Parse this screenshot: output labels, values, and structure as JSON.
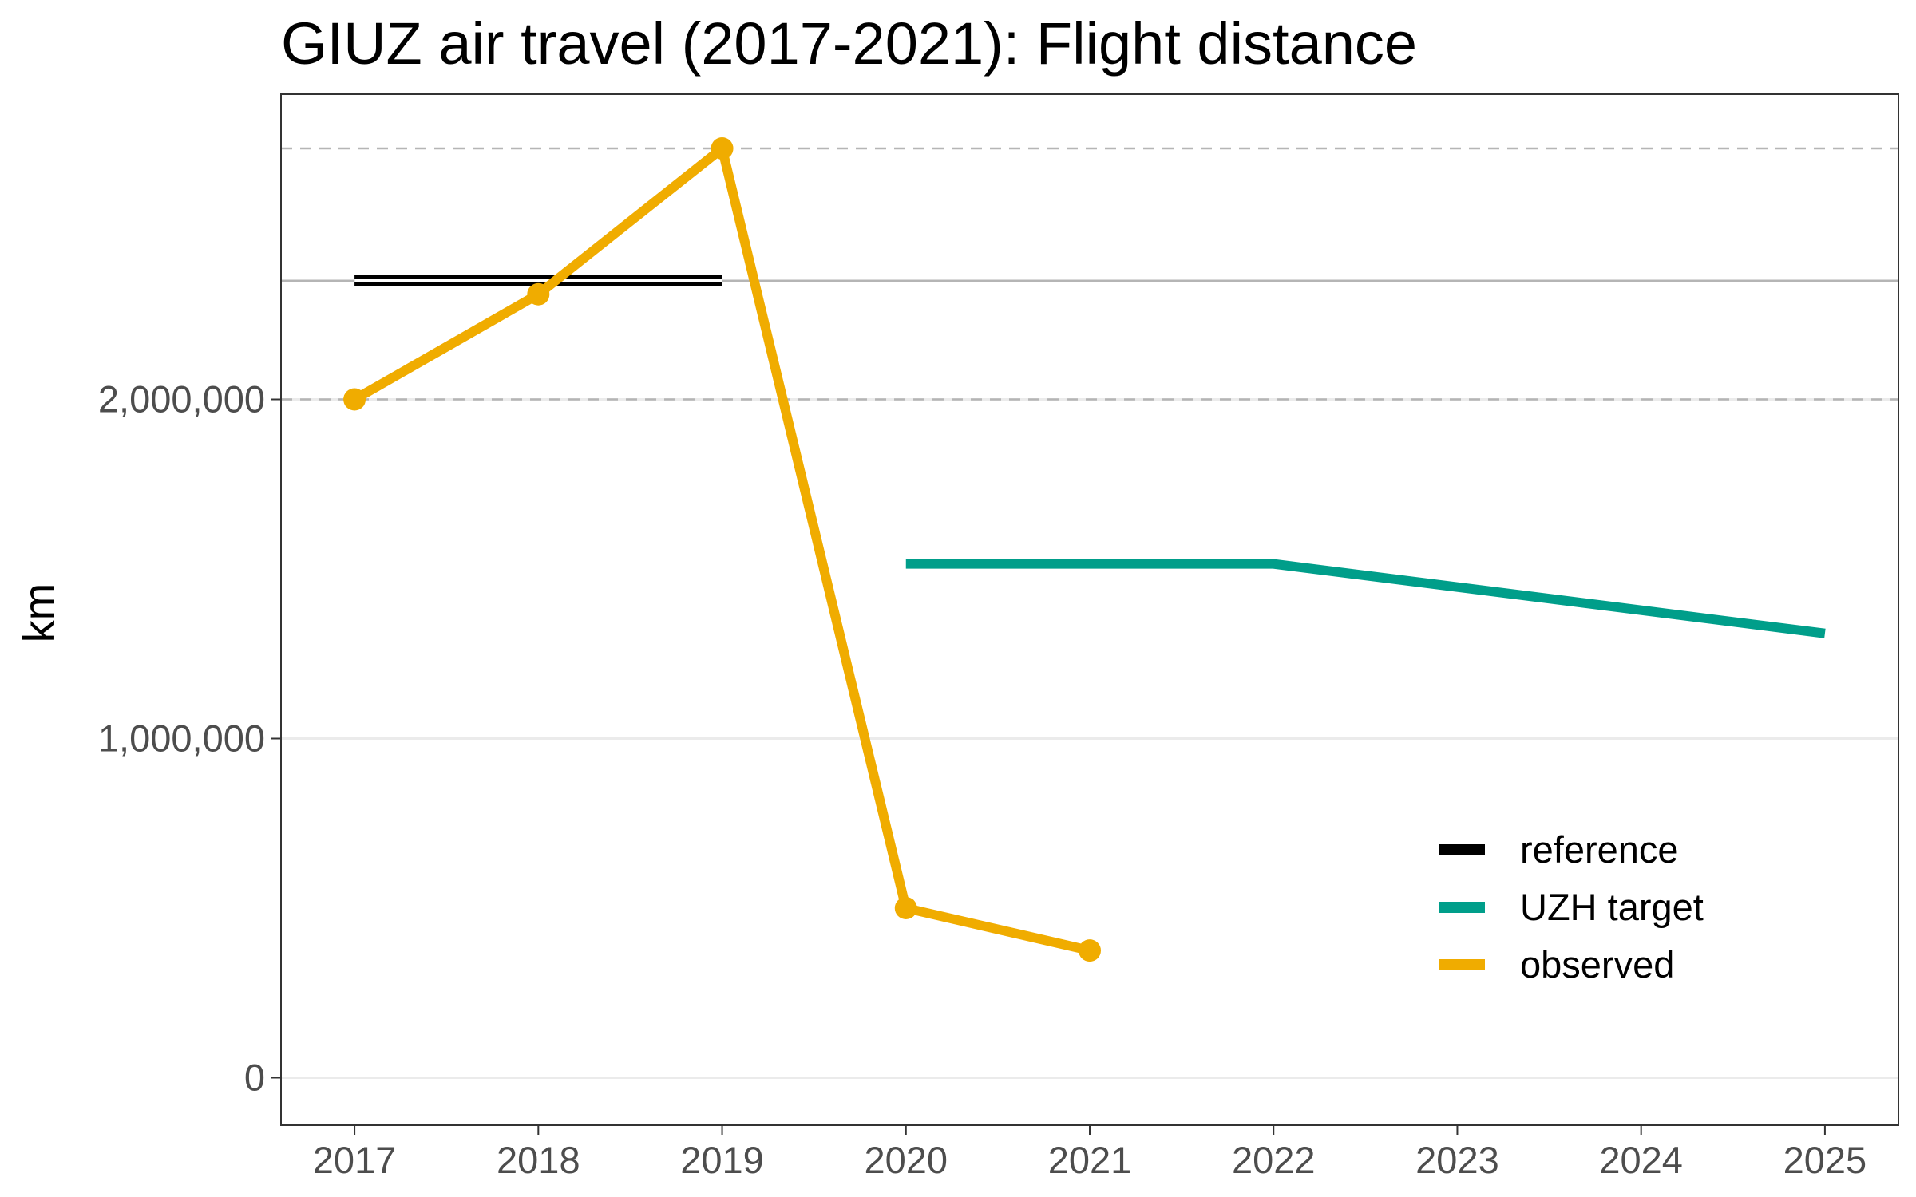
{
  "chart_data": {
    "type": "line",
    "title": "GIUZ air travel (2017-2021): Flight distance",
    "xlabel": "",
    "ylabel": "km",
    "x_ticks": [
      "2017",
      "2018",
      "2019",
      "2020",
      "2021",
      "2022",
      "2023",
      "2024",
      "2025"
    ],
    "y_ticks": [
      {
        "value": 0,
        "label": "0"
      },
      {
        "value": 1000000,
        "label": "1,000,000"
      },
      {
        "value": 2000000,
        "label": "2,000,000"
      }
    ],
    "xlim": [
      2016.6,
      2025.4
    ],
    "ylim": [
      -140000,
      2900000
    ],
    "reference_lines": [
      {
        "value": 2740000,
        "style": "dashed"
      },
      {
        "value": 2350000,
        "style": "solid"
      },
      {
        "value": 2000000,
        "style": "dashed"
      }
    ],
    "series": [
      {
        "name": "reference",
        "color": "#000000",
        "style": "double-line",
        "x": [
          2017,
          2019
        ],
        "y": [
          2350000,
          2350000
        ]
      },
      {
        "name": "UZH target",
        "color": "#009E8A",
        "x": [
          2020,
          2022,
          2025
        ],
        "y": [
          1515000,
          1515000,
          1310000
        ]
      },
      {
        "name": "observed",
        "color": "#F0AC00",
        "markers": true,
        "x": [
          2017,
          2018,
          2019,
          2020,
          2021
        ],
        "y": [
          2000000,
          2310000,
          2740000,
          500000,
          375000
        ]
      }
    ],
    "grid": true,
    "legend_position": "bottom-right"
  }
}
